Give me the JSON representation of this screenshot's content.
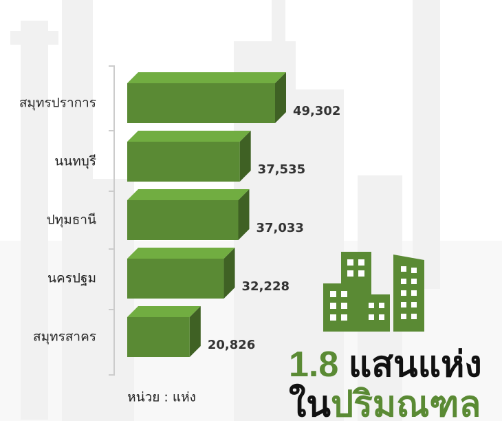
{
  "chart_data": {
    "type": "bar",
    "orientation": "horizontal",
    "categories": [
      "สมุทรปราการ",
      "นนทบุรี",
      "ปทุมธานี",
      "นครปฐม",
      "สมุทรสาคร"
    ],
    "values": [
      49302,
      37535,
      37033,
      32228,
      20826
    ],
    "value_labels": [
      "49,302",
      "37,535",
      "37,033",
      "32,228",
      "20,826"
    ],
    "color": "#5a8a34",
    "unit_note": "หน่วย : แห่ง"
  },
  "headline": {
    "line1": [
      "1.8",
      "แสนแห่ง"
    ],
    "line2": [
      "ใน",
      "ปริมณฑล"
    ]
  }
}
